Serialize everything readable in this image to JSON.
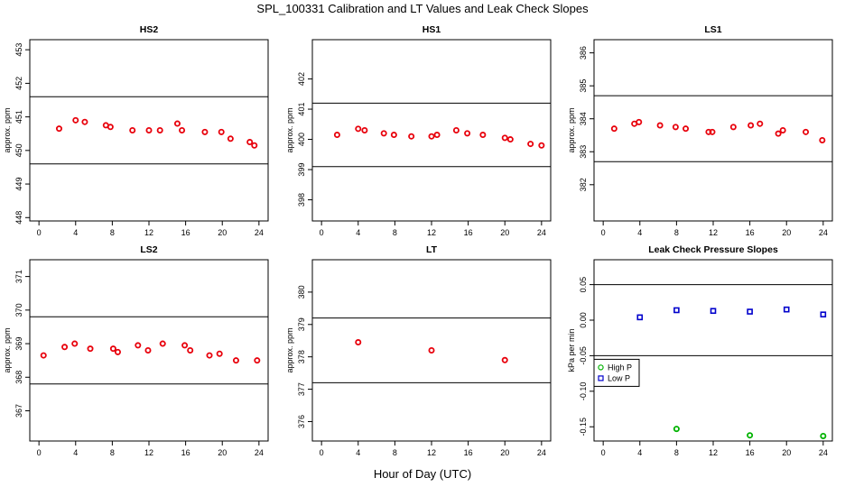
{
  "title": "SPL_100331  Calibration and LT Values and Leak Check Slopes",
  "xlabel": "Hour of Day (UTC)",
  "chart_data": [
    {
      "type": "scatter",
      "title": "HS2",
      "ylabel": "approx. ppm",
      "xlim": [
        -1,
        25
      ],
      "ylim": [
        447.9,
        453.3
      ],
      "xticks": [
        0,
        4,
        8,
        12,
        16,
        20,
        24
      ],
      "yticks": [
        448,
        449,
        450,
        451,
        452,
        453
      ],
      "hlines": [
        451.6,
        449.6
      ],
      "series": [
        {
          "color": "#e8000b",
          "marker": "circle",
          "x": [
            2.2,
            4.0,
            5.0,
            7.3,
            7.8,
            10.2,
            12.0,
            13.2,
            15.1,
            15.6,
            18.1,
            19.9,
            20.9,
            23.0,
            23.5
          ],
          "y": [
            450.65,
            450.9,
            450.85,
            450.75,
            450.7,
            450.6,
            450.6,
            450.6,
            450.8,
            450.6,
            450.55,
            450.55,
            450.35,
            450.25,
            450.15
          ]
        }
      ]
    },
    {
      "type": "scatter",
      "title": "HS1",
      "ylabel": "approx. ppm",
      "xlim": [
        -1,
        25
      ],
      "ylim": [
        397.3,
        403.3
      ],
      "xticks": [
        0,
        4,
        8,
        12,
        16,
        20,
        24
      ],
      "yticks": [
        398,
        399,
        400,
        401,
        402
      ],
      "hlines": [
        401.2,
        399.1
      ],
      "series": [
        {
          "color": "#e8000b",
          "marker": "circle",
          "x": [
            1.7,
            4.0,
            4.7,
            6.8,
            7.9,
            9.8,
            12.0,
            12.6,
            14.7,
            15.9,
            17.6,
            20.0,
            20.6,
            22.8,
            24.0
          ],
          "y": [
            400.15,
            400.35,
            400.3,
            400.2,
            400.15,
            400.1,
            400.1,
            400.15,
            400.3,
            400.2,
            400.15,
            400.05,
            400.0,
            399.85,
            399.8
          ]
        }
      ]
    },
    {
      "type": "scatter",
      "title": "LS1",
      "ylabel": "approx. ppm",
      "xlim": [
        -1,
        25
      ],
      "ylim": [
        380.9,
        386.4
      ],
      "xticks": [
        0,
        4,
        8,
        12,
        16,
        20,
        24
      ],
      "yticks": [
        382,
        383,
        384,
        385,
        386
      ],
      "hlines": [
        384.7,
        382.7
      ],
      "series": [
        {
          "color": "#e8000b",
          "marker": "circle",
          "x": [
            1.2,
            3.4,
            3.9,
            6.2,
            7.9,
            9.0,
            11.5,
            11.9,
            14.2,
            16.1,
            17.1,
            19.1,
            19.6,
            22.1,
            23.9
          ],
          "y": [
            383.7,
            383.85,
            383.9,
            383.8,
            383.75,
            383.7,
            383.6,
            383.6,
            383.75,
            383.8,
            383.85,
            383.55,
            383.65,
            383.6,
            383.35
          ]
        }
      ]
    },
    {
      "type": "scatter",
      "title": "LS2",
      "ylabel": "approx. ppm",
      "xlim": [
        -1,
        25
      ],
      "ylim": [
        366.1,
        371.5
      ],
      "xticks": [
        0,
        4,
        8,
        12,
        16,
        20,
        24
      ],
      "yticks": [
        367,
        368,
        369,
        370,
        371
      ],
      "hlines": [
        369.8,
        367.8
      ],
      "series": [
        {
          "color": "#e8000b",
          "marker": "circle",
          "x": [
            0.5,
            2.8,
            3.9,
            5.6,
            8.1,
            8.6,
            10.8,
            11.9,
            13.5,
            15.9,
            16.5,
            18.6,
            19.7,
            21.5,
            23.8
          ],
          "y": [
            368.65,
            368.9,
            369.0,
            368.85,
            368.85,
            368.75,
            368.95,
            368.8,
            369.0,
            368.95,
            368.8,
            368.65,
            368.7,
            368.5,
            368.5
          ]
        }
      ]
    },
    {
      "type": "scatter",
      "title": "LT",
      "ylabel": "approx. ppm",
      "xlim": [
        -1,
        25
      ],
      "ylim": [
        375.4,
        381.0
      ],
      "xticks": [
        0,
        4,
        8,
        12,
        16,
        20,
        24
      ],
      "yticks": [
        376,
        377,
        378,
        379,
        380
      ],
      "hlines": [
        379.2,
        377.2
      ],
      "series": [
        {
          "color": "#e8000b",
          "marker": "circle",
          "x": [
            4.0,
            12.0,
            20.0
          ],
          "y": [
            378.45,
            378.2,
            377.9
          ]
        }
      ]
    },
    {
      "type": "scatter",
      "title": "Leak Check Pressure Slopes",
      "ylabel": "kPa per min",
      "xlim": [
        -1,
        25
      ],
      "ylim": [
        -0.17,
        0.085
      ],
      "xticks": [
        0,
        4,
        8,
        12,
        16,
        20,
        24
      ],
      "yticks": [
        -0.15,
        -0.1,
        -0.05,
        0.0,
        0.05
      ],
      "ytick_labels": [
        "-0.15",
        "-0.10",
        "-0.05",
        "0.00",
        "0.05"
      ],
      "hlines": [
        0.05,
        -0.05
      ],
      "legend": {
        "position": "left",
        "entries": [
          "High P",
          "Low P"
        ]
      },
      "series": [
        {
          "name": "High P",
          "color": "#00b300",
          "marker": "circle",
          "x": [
            8.0,
            16.0,
            24.0
          ],
          "y": [
            -0.153,
            -0.162,
            -0.163
          ]
        },
        {
          "name": "Low P",
          "color": "#0000cc",
          "marker": "square",
          "x": [
            4.0,
            8.0,
            12.0,
            16.0,
            20.0,
            24.0
          ],
          "y": [
            0.004,
            0.014,
            0.013,
            0.012,
            0.015,
            0.008
          ]
        }
      ]
    }
  ]
}
